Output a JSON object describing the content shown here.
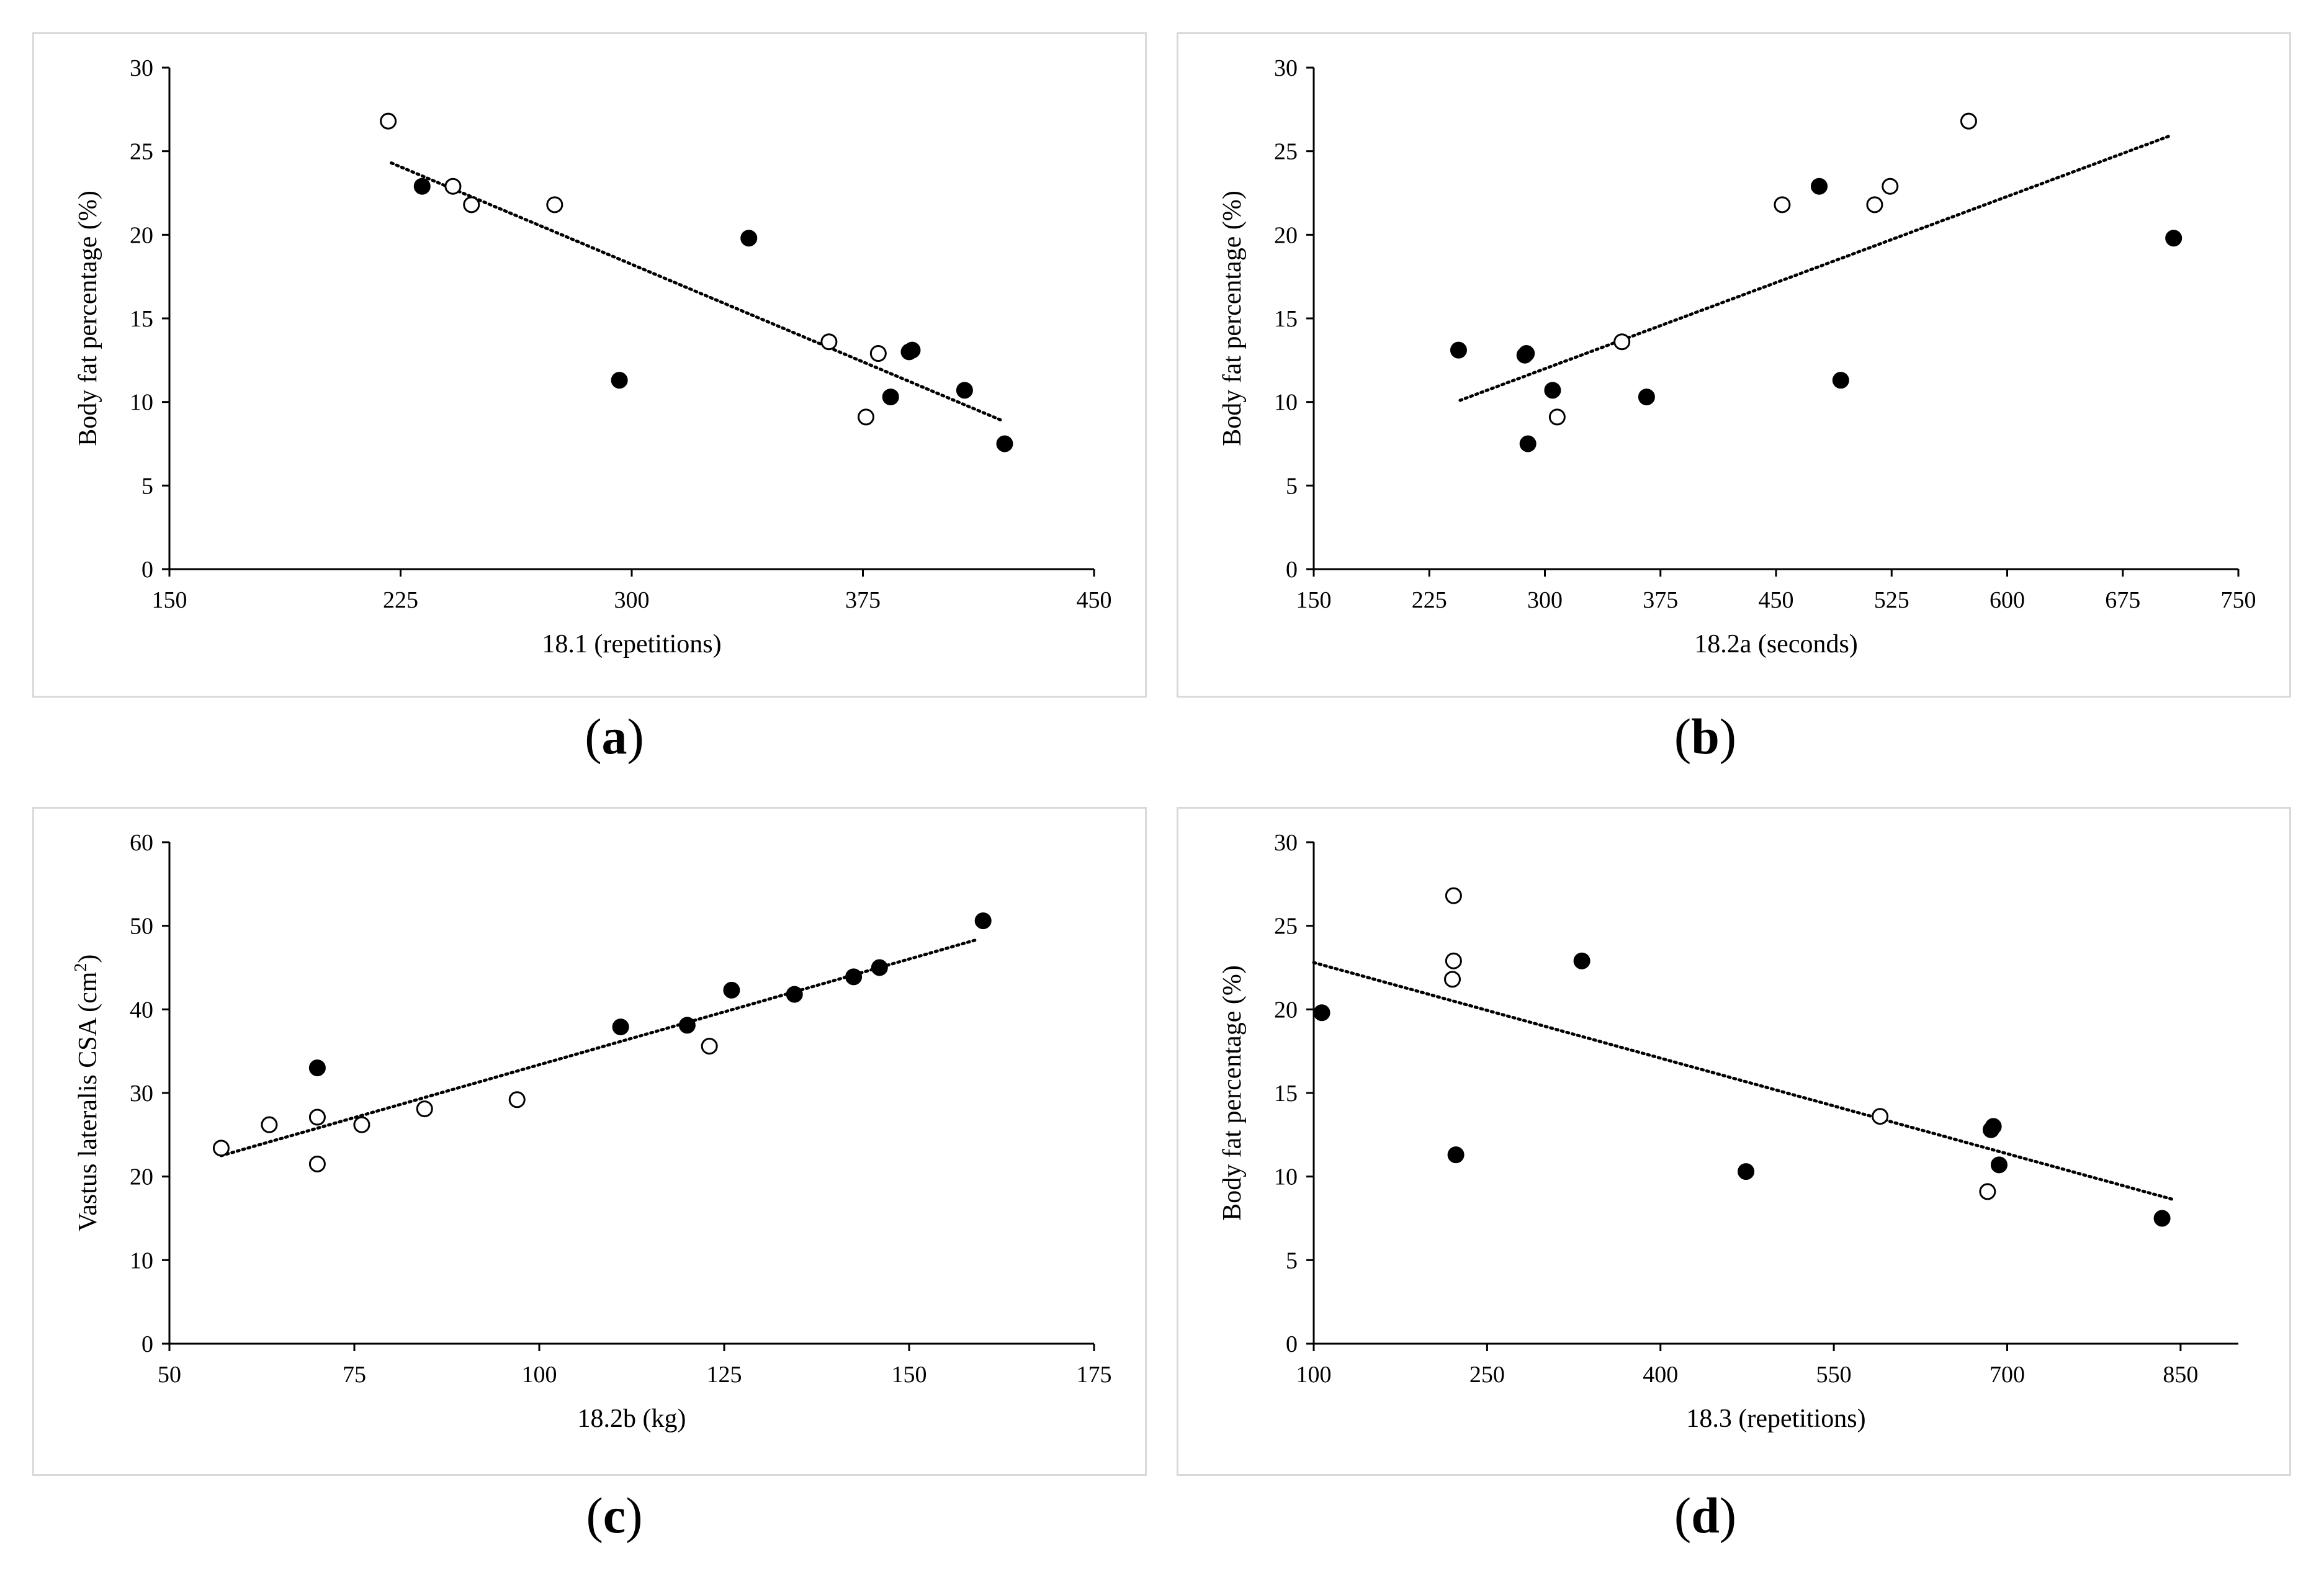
{
  "chart_data": [
    {
      "type": "scatter",
      "panel_label": "a",
      "xlabel": "18.1 (repetitions)",
      "ylabel": "Body fat percentage (%)",
      "ylabel_sup": "",
      "ylabel_tail": "",
      "xlim": [
        150,
        450
      ],
      "ylim": [
        0,
        30
      ],
      "xticks": [
        150,
        225,
        300,
        375,
        450
      ],
      "yticks": [
        0,
        5,
        10,
        15,
        20,
        25,
        30
      ],
      "trendline": {
        "style": "dotted",
        "x1": 222,
        "y1": 24.3,
        "x2": 420,
        "y2": 8.9
      },
      "series": [
        {
          "name": "open",
          "marker": "open-circle",
          "points": [
            [
              221,
              26.8
            ],
            [
              242,
              22.9
            ],
            [
              248,
              21.8
            ],
            [
              275,
              21.8
            ],
            [
              364,
              13.6
            ],
            [
              380,
              12.9
            ],
            [
              376,
              9.1
            ]
          ]
        },
        {
          "name": "filled",
          "marker": "filled-circle",
          "points": [
            [
              232,
              22.9
            ],
            [
              296,
              11.3
            ],
            [
              338,
              19.8
            ],
            [
              390,
              13.0
            ],
            [
              391,
              13.1
            ],
            [
              384,
              10.3
            ],
            [
              408,
              10.7
            ],
            [
              421,
              7.5
            ]
          ]
        }
      ]
    },
    {
      "type": "scatter",
      "panel_label": "b",
      "xlabel": "18.2a (seconds)",
      "ylabel": "Body fat percentage (%)",
      "ylabel_sup": "",
      "ylabel_tail": "",
      "xlim": [
        150,
        750
      ],
      "ylim": [
        0,
        30
      ],
      "xticks": [
        150,
        225,
        300,
        375,
        450,
        525,
        600,
        675,
        750
      ],
      "yticks": [
        0,
        5,
        10,
        15,
        20,
        25,
        30
      ],
      "trendline": {
        "style": "dotted",
        "x1": 245,
        "y1": 10.1,
        "x2": 705,
        "y2": 25.9
      },
      "series": [
        {
          "name": "open",
          "marker": "open-circle",
          "points": [
            [
              575,
              26.8
            ],
            [
              524,
              22.9
            ],
            [
              514,
              21.8
            ],
            [
              454,
              21.8
            ],
            [
              350,
              13.6
            ],
            [
              308,
              9.1
            ]
          ]
        },
        {
          "name": "filled",
          "marker": "filled-circle",
          "points": [
            [
              244,
              13.1
            ],
            [
              287,
              12.8
            ],
            [
              288,
              12.9
            ],
            [
              305,
              10.7
            ],
            [
              289,
              7.5
            ],
            [
              366,
              10.3
            ],
            [
              478,
              22.9
            ],
            [
              492,
              11.3
            ],
            [
              708,
              19.8
            ]
          ]
        }
      ]
    },
    {
      "type": "scatter",
      "panel_label": "c",
      "xlabel": "18.2b (kg)",
      "ylabel": "Vastus lateralis CSA (cm",
      "ylabel_sup": "2",
      "ylabel_tail": ")",
      "xlim": [
        50,
        175
      ],
      "ylim": [
        0,
        60
      ],
      "xticks": [
        50,
        75,
        100,
        125,
        150,
        175
      ],
      "yticks": [
        0,
        10,
        20,
        30,
        40,
        50,
        60
      ],
      "trendline": {
        "style": "dotted",
        "x1": 57,
        "y1": 22.5,
        "x2": 159,
        "y2": 48.3
      },
      "series": [
        {
          "name": "open",
          "marker": "open-circle",
          "points": [
            [
              57,
              23.4
            ],
            [
              63.5,
              26.2
            ],
            [
              70,
              27.1
            ],
            [
              70,
              21.5
            ],
            [
              76,
              26.2
            ],
            [
              84.5,
              28.1
            ],
            [
              97,
              29.2
            ],
            [
              123,
              35.6
            ]
          ]
        },
        {
          "name": "filled",
          "marker": "filled-circle",
          "points": [
            [
              70,
              33.0
            ],
            [
              111,
              37.9
            ],
            [
              120,
              38.1
            ],
            [
              126,
              42.3
            ],
            [
              134.5,
              41.8
            ],
            [
              142.5,
              43.9
            ],
            [
              146,
              45.0
            ],
            [
              160,
              50.6
            ]
          ]
        }
      ]
    },
    {
      "type": "scatter",
      "panel_label": "d",
      "xlabel": "18.3 (repetitions)",
      "ylabel": "Body fat percentage (%)",
      "ylabel_sup": "",
      "ylabel_tail": "",
      "xlim": [
        100,
        900
      ],
      "ylim": [
        0,
        30
      ],
      "xticks": [
        100,
        250,
        400,
        550,
        700,
        850
      ],
      "xtick_labels": [
        "100",
        "250",
        "400",
        "550",
        "700",
        "850"
      ],
      "yticks": [
        0,
        5,
        10,
        15,
        20,
        25,
        30
      ],
      "trendline": {
        "style": "dotted",
        "x1": 100,
        "y1": 22.8,
        "x2": 845,
        "y2": 8.6
      },
      "series": [
        {
          "name": "open",
          "marker": "open-circle",
          "points": [
            [
              221,
              26.8
            ],
            [
              221,
              22.9
            ],
            [
              220,
              21.8
            ],
            [
              590,
              13.6
            ],
            [
              683,
              9.1
            ]
          ]
        },
        {
          "name": "filled",
          "marker": "filled-circle",
          "points": [
            [
              107,
              19.8
            ],
            [
              223,
              11.3
            ],
            [
              332,
              22.9
            ],
            [
              474,
              10.3
            ],
            [
              688,
              13.0
            ],
            [
              686,
              12.8
            ],
            [
              693,
              10.7
            ],
            [
              834,
              7.5
            ]
          ]
        }
      ]
    }
  ]
}
